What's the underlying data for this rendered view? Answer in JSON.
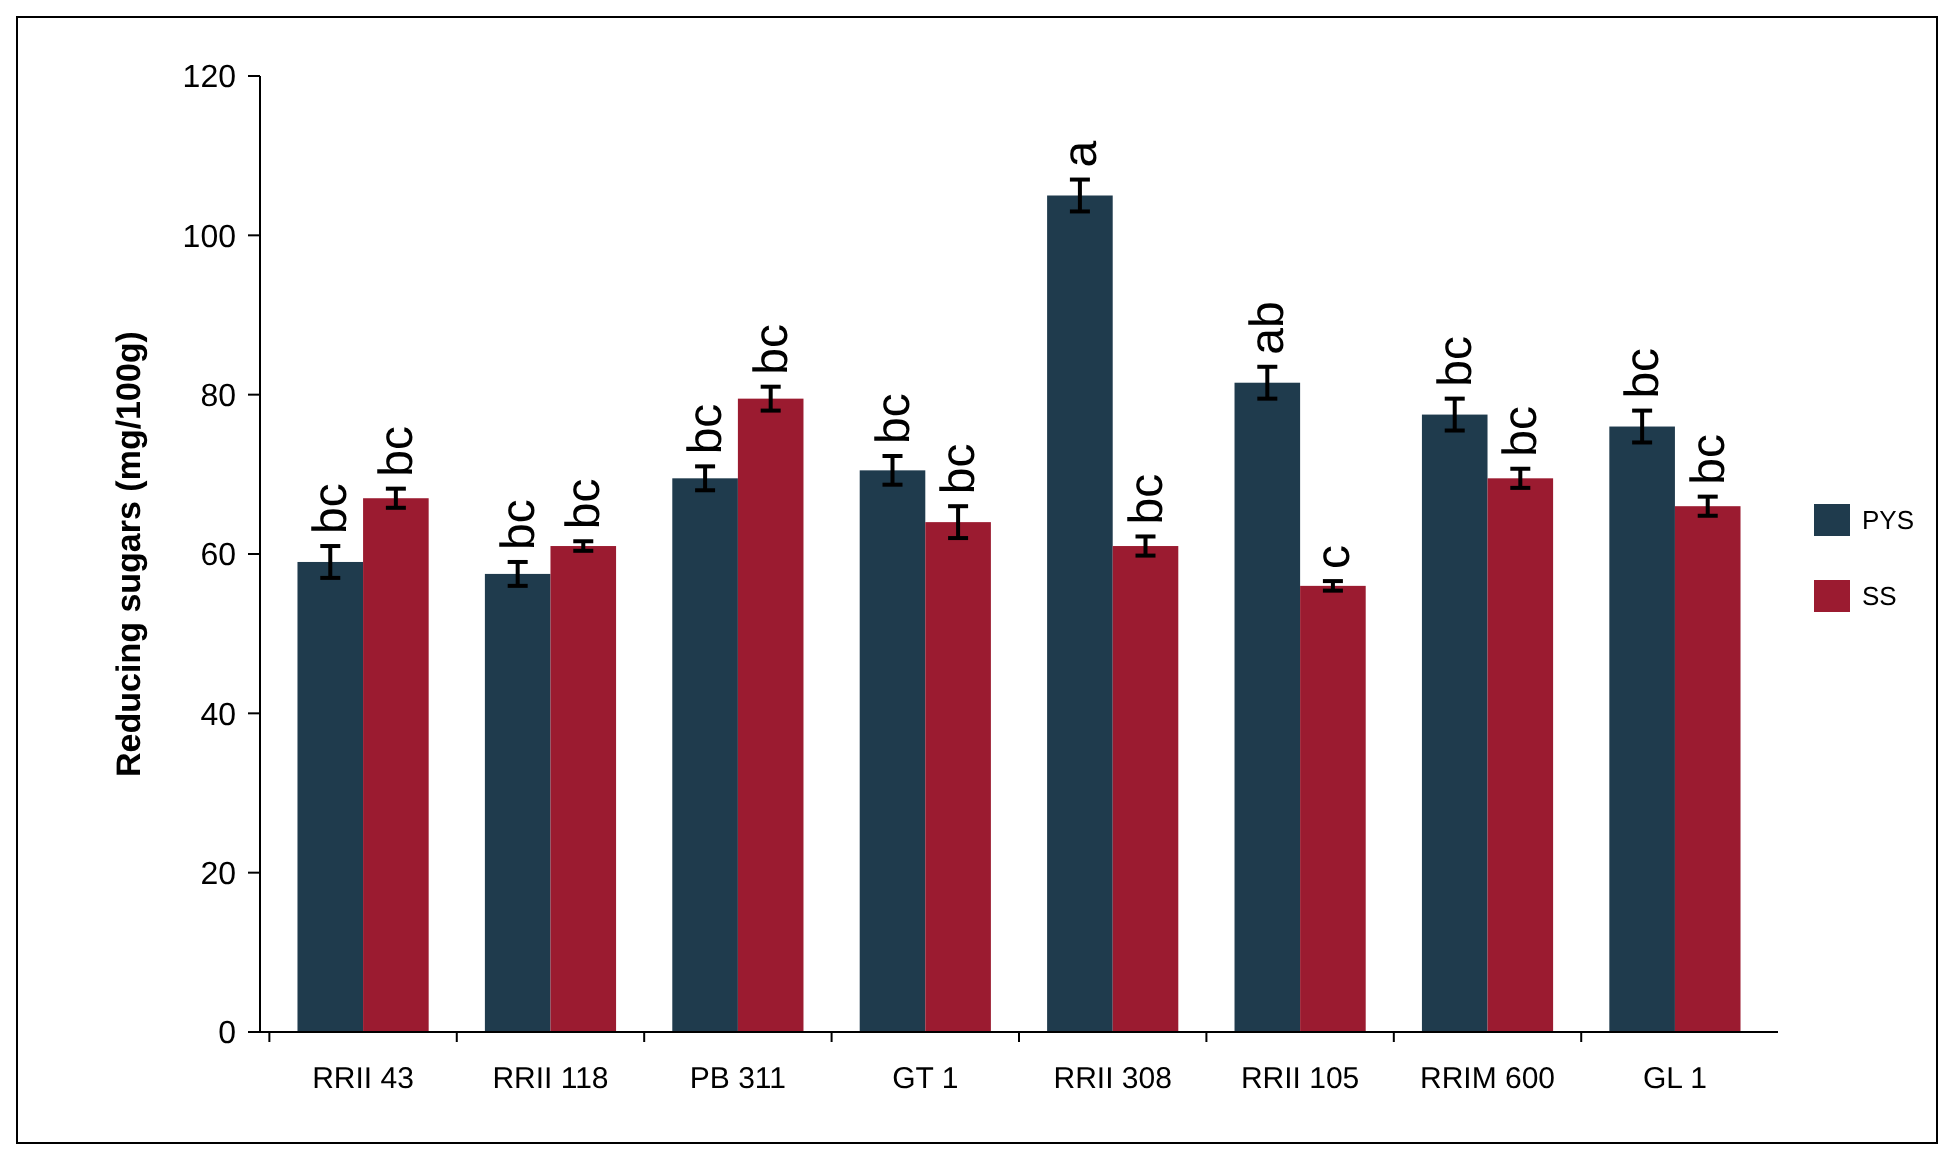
{
  "chart_data": {
    "type": "bar",
    "ylabel": "Reducing sugars (mg/100g)",
    "categories": [
      "RRII 43",
      "RRII 118",
      "PB 311",
      "GT 1",
      "RRII 308",
      "RRII 105",
      "RRIM 600",
      "GL 1"
    ],
    "series": [
      {
        "name": "PYS",
        "color": "#1f3b4d",
        "values": [
          59,
          57.5,
          69.5,
          70.5,
          105,
          81.5,
          77.5,
          76
        ],
        "errors": [
          2,
          1.5,
          1.5,
          1.8,
          2,
          2,
          2,
          2
        ],
        "value_labels": [
          "bc",
          "bc",
          "bc",
          "bc",
          "a",
          "ab",
          "bc",
          "bc"
        ]
      },
      {
        "name": "SS",
        "color": "#9b1b30",
        "values": [
          67,
          61,
          79.5,
          64,
          61,
          56,
          69.5,
          66
        ],
        "errors": [
          1.2,
          0.6,
          1.5,
          2,
          1.2,
          0.6,
          1.2,
          1.2
        ],
        "value_labels": [
          "bc",
          "bc",
          "bc",
          "bc",
          "bc",
          "c",
          "bc",
          "bc"
        ]
      }
    ],
    "ylim": [
      0,
      120
    ],
    "yticks": [
      0,
      20,
      40,
      60,
      80,
      100,
      120
    ],
    "grid": false,
    "legend": "right"
  }
}
